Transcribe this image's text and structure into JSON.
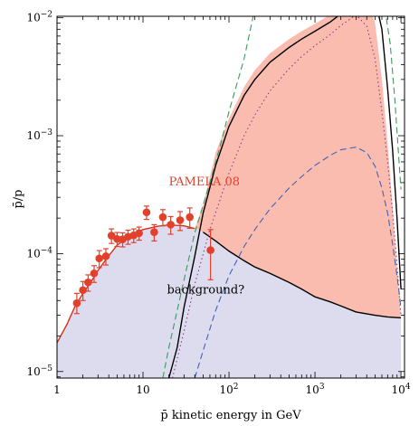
{
  "chart_data": {
    "type": "line",
    "xlabel": "p̄ kinetic energy in GeV",
    "ylabel": "p̄/p",
    "x_scale": "log",
    "y_scale": "log",
    "xlim": [
      1,
      11000
    ],
    "ylim": [
      8.8e-06,
      0.0103
    ],
    "grid": false,
    "x_ticks": [
      {
        "value": 1,
        "label": "1"
      },
      {
        "value": 10,
        "label": "10"
      },
      {
        "value": 100,
        "label": "10",
        "exp": "2"
      },
      {
        "value": 1000,
        "label": "10",
        "exp": "3"
      },
      {
        "value": 10000,
        "label": "10",
        "exp": "4"
      }
    ],
    "y_ticks": [
      {
        "value": 1e-05,
        "label": "10",
        "exp": "−5"
      },
      {
        "value": 0.0001,
        "label": "10",
        "exp": "−4"
      },
      {
        "value": 0.001,
        "label": "10",
        "exp": "−3"
      },
      {
        "value": 0.01,
        "label": "10",
        "exp": "−2"
      }
    ],
    "annotations": [
      {
        "text": "PAMELA 08",
        "x": 20,
        "y": 0.00038,
        "color": "#e2402b"
      },
      {
        "text": "background?",
        "x": 19,
        "y": 4.6e-05,
        "color": "#000000"
      }
    ],
    "series": [
      {
        "role": "background-band",
        "style": "fill",
        "color": "#dcdcee",
        "x": [
          1,
          1.3,
          1.6,
          2,
          2.5,
          3,
          4,
          5,
          7,
          10,
          15,
          20,
          30,
          40,
          50,
          70,
          100,
          150,
          200,
          300,
          500,
          700,
          1000,
          1500,
          2000,
          3000,
          5000,
          7000,
          10000
        ],
        "y": [
          1.75e-05,
          2.5e-05,
          3.5e-05,
          4.6e-05,
          5.8e-05,
          7.2e-05,
          9.6e-05,
          0.000118,
          0.000142,
          0.00016,
          0.000171,
          0.000175,
          0.000172,
          0.000163,
          0.000152,
          0.000128,
          0.000105,
          8.7e-05,
          7.7e-05,
          6.8e-05,
          5.7e-05,
          5e-05,
          4.3e-05,
          3.9e-05,
          3.6e-05,
          3.2e-05,
          3e-05,
          2.9e-05,
          2.85e-05
        ]
      },
      {
        "role": "total-band",
        "style": "fill",
        "color": "#fbbcb0",
        "x": [
          40,
          50,
          60,
          70,
          100,
          150,
          200,
          300,
          500,
          700,
          1000,
          1500,
          2000,
          3000,
          4000,
          5000,
          6000,
          7000,
          8000,
          9000,
          10000
        ],
        "y": [
          0.000163,
          0.00026,
          0.00045,
          0.00072,
          0.0014,
          0.0026,
          0.0036,
          0.005,
          0.0066,
          0.0077,
          0.0089,
          0.0106,
          0.0124,
          0.0145,
          0.015,
          0.009,
          0.003,
          0.00085,
          0.00025,
          7.5e-05,
          2.85e-05
        ]
      },
      {
        "role": "background-curve",
        "style": "solid",
        "color": "#000000",
        "x": [
          50,
          70,
          100,
          150,
          200,
          300,
          500,
          700,
          1000,
          1500,
          2000,
          3000,
          5000,
          7000,
          10000
        ],
        "y": [
          0.000152,
          0.000128,
          0.000105,
          8.7e-05,
          7.7e-05,
          6.8e-05,
          5.7e-05,
          5e-05,
          4.3e-05,
          3.9e-05,
          3.6e-05,
          3.2e-05,
          3e-05,
          2.9e-05,
          2.85e-05
        ]
      },
      {
        "role": "fit-low-energy",
        "style": "solid",
        "color": "#d8301c",
        "x": [
          1,
          1.3,
          1.6,
          2,
          2.5,
          3,
          4,
          5,
          7,
          10,
          15,
          20,
          30,
          40
        ],
        "y": [
          1.75e-05,
          2.5e-05,
          3.5e-05,
          4.6e-05,
          5.8e-05,
          7.2e-05,
          9.6e-05,
          0.000118,
          0.000142,
          0.00016,
          0.000171,
          0.000175,
          0.000172,
          0.000163
        ]
      },
      {
        "role": "total-curve",
        "style": "solid",
        "color": "#000000",
        "x": [
          20,
          25,
          30,
          40,
          50,
          70,
          100,
          150,
          200,
          300,
          500,
          700,
          1000,
          1500,
          2000,
          3000,
          4000,
          5000,
          6000,
          7000,
          8000,
          9000,
          10000
        ],
        "y": [
          8.8e-06,
          1.6e-05,
          3.5e-05,
          9.5e-05,
          0.00022,
          0.00056,
          0.0012,
          0.0022,
          0.003,
          0.0042,
          0.0056,
          0.0066,
          0.0077,
          0.0092,
          0.0108,
          0.0128,
          0.014,
          0.0145,
          0.008,
          0.0025,
          0.00075,
          0.0002,
          5e-05
        ]
      },
      {
        "role": "green-dashed",
        "style": "dashed",
        "color": "#3a9a5a",
        "x": [
          17,
          20,
          25,
          30,
          40,
          60,
          80,
          100,
          150,
          200
        ],
        "y": [
          8.8e-06,
          1.6e-05,
          3.3e-05,
          6e-05,
          0.00015,
          0.0004,
          0.00085,
          0.0016,
          0.0045,
          0.012
        ]
      },
      {
        "role": "green-dashed-right",
        "style": "dashed",
        "color": "#3a9a5a",
        "x": [
          6500,
          7500,
          8500,
          9500,
          10000
        ],
        "y": [
          0.012,
          0.006,
          0.002,
          0.0006,
          0.00035
        ]
      },
      {
        "role": "purple-dotted",
        "style": "dotted",
        "color": "#8c3b8c",
        "x": [
          22,
          30,
          40,
          60,
          100,
          150,
          200,
          300,
          500,
          700,
          1000,
          1500,
          2000,
          3000,
          4000,
          5000,
          6000,
          7000,
          8000,
          9000,
          10000
        ],
        "y": [
          8.8e-06,
          2.2e-05,
          5.5e-05,
          0.00016,
          0.00048,
          0.001,
          0.0015,
          0.0024,
          0.0037,
          0.0047,
          0.0058,
          0.0072,
          0.0086,
          0.0106,
          0.0085,
          0.0045,
          0.0016,
          0.0006,
          0.00022,
          8e-05,
          3e-05
        ]
      },
      {
        "role": "blue-dashed",
        "style": "dashed",
        "color": "#3f63b8",
        "x": [
          40,
          50,
          70,
          100,
          150,
          200,
          300,
          500,
          700,
          1000,
          1500,
          2000,
          3000,
          4000,
          5000,
          6000,
          7000,
          8000,
          9000,
          10000
        ],
        "y": [
          8.8e-06,
          1.5e-05,
          3.3e-05,
          6.5e-05,
          0.000115,
          0.00016,
          0.00024,
          0.00036,
          0.00045,
          0.00056,
          0.00068,
          0.00076,
          0.0008,
          0.00072,
          0.00055,
          0.00036,
          0.00022,
          0.00012,
          6.5e-05,
          3.5e-05
        ]
      },
      {
        "name": "PAMELA 08",
        "role": "data-points",
        "style": "markers",
        "color": "#e2402b",
        "x": [
          1.7,
          2.0,
          2.3,
          2.7,
          3.1,
          3.7,
          4.3,
          5.0,
          5.8,
          6.7,
          7.8,
          9.0,
          11.0,
          13.5,
          17.0,
          21.0,
          27.0,
          35.0,
          61.0
        ],
        "y": [
          3.8e-05,
          4.9e-05,
          5.7e-05,
          6.8e-05,
          9.1e-05,
          9.5e-05,
          0.000142,
          0.000133,
          0.000132,
          0.000139,
          0.000143,
          0.000149,
          0.000224,
          0.000152,
          0.000204,
          0.000176,
          0.000192,
          0.000204,
          0.000107
        ],
        "err_low": [
          3.1e-05,
          4e-05,
          4.8e-05,
          5.7e-05,
          7.6e-05,
          8e-05,
          0.000122,
          0.000115,
          0.000114,
          0.00012,
          0.000124,
          0.00013,
          0.000195,
          0.000128,
          0.000172,
          0.000146,
          0.000157,
          0.000164,
          6e-05
        ],
        "err_high": [
          4.6e-05,
          5.8e-05,
          6.6e-05,
          7.9e-05,
          0.000106,
          0.00011,
          0.000162,
          0.000151,
          0.00015,
          0.000158,
          0.000162,
          0.000168,
          0.000253,
          0.000176,
          0.000236,
          0.000206,
          0.000227,
          0.000244,
          0.00016
        ]
      }
    ]
  }
}
